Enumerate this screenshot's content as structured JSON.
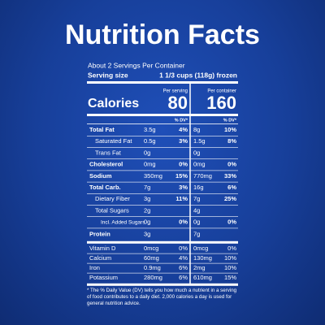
{
  "header": {
    "title": "Nutrition Facts"
  },
  "label": {
    "servings": "About 2 Servings Per Container",
    "serving_size_label": "Serving size",
    "serving_size": "1 1/3 cups (118g) frozen",
    "calories_label": "Calories",
    "columns": [
      {
        "heading": "Per serving",
        "calories": "80"
      },
      {
        "heading": "Per container",
        "calories": "160"
      }
    ],
    "dv_headers": [
      "% DV*",
      "% DV*"
    ],
    "nutrients": [
      {
        "name": "Total Fat",
        "bold": true,
        "indent": 0,
        "amount_1": "3.5g",
        "dv_1": "4%",
        "amount_2": "8g",
        "dv_2": "10%"
      },
      {
        "name": "Saturated Fat",
        "bold": false,
        "indent": 1,
        "amount_1": "0.5g",
        "dv_1": "3%",
        "amount_2": "1.5g",
        "dv_2": "8%"
      },
      {
        "name": "Trans Fat",
        "bold": false,
        "indent": 1,
        "amount_1": "0g",
        "amount_2": "0g"
      },
      {
        "name": "Cholesterol",
        "bold": true,
        "indent": 0,
        "amount_1": "0mg",
        "dv_1": "0%",
        "amount_2": "0mg",
        "dv_2": "0%"
      },
      {
        "name": "Sodium",
        "bold": true,
        "indent": 0,
        "amount_1": "350mg",
        "dv_1": "15%",
        "amount_2": "770mg",
        "dv_2": "33%"
      },
      {
        "name": "Total Carb.",
        "bold": true,
        "indent": 0,
        "amount_1": "7g",
        "dv_1": "3%",
        "amount_2": "16g",
        "dv_2": "6%"
      },
      {
        "name": "Dietary Fiber",
        "bold": false,
        "indent": 1,
        "amount_1": "3g",
        "dv_1": "11%",
        "amount_2": "7g",
        "dv_2": "25%"
      },
      {
        "name": "Total Sugars",
        "bold": false,
        "indent": 1,
        "amount_1": "2g",
        "amount_2": "4g"
      },
      {
        "name": "Incl. Added Sugars",
        "bold": false,
        "indent": 2,
        "amount_1": "0g",
        "dv_1": "0%",
        "amount_2": "0g",
        "dv_2": "0%"
      },
      {
        "name": "Protein",
        "bold": true,
        "indent": 0,
        "amount_1": "3g",
        "amount_2": "7g"
      }
    ],
    "vitamins": [
      {
        "name": "Vitamin D",
        "amount_1": "0mcg",
        "dv_1": "0%",
        "amount_2": "0mcg",
        "dv_2": "0%"
      },
      {
        "name": "Calcium",
        "amount_1": "60mg",
        "dv_1": "4%",
        "amount_2": "130mg",
        "dv_2": "10%"
      },
      {
        "name": "Iron",
        "amount_1": "0.9mg",
        "dv_1": "6%",
        "amount_2": "2mg",
        "dv_2": "10%"
      },
      {
        "name": "Potassium",
        "amount_1": "280mg",
        "dv_1": "6%",
        "amount_2": "610mg",
        "dv_2": "15%"
      }
    ],
    "footnote": "* The % Daily Value (DV) tells you how much a nutrient in a serving of food contributes to a daily diet. 2,000 calories a day is used for general nutrition advice."
  }
}
